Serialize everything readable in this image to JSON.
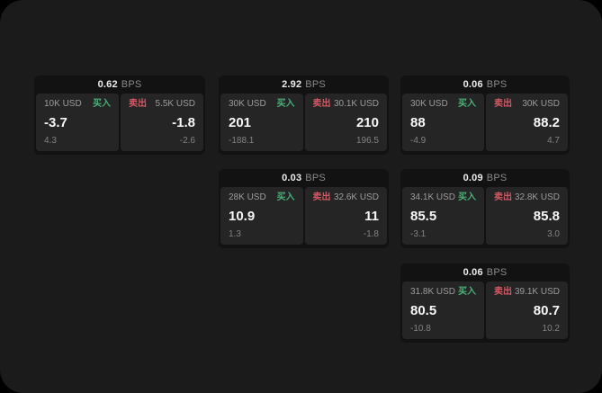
{
  "labels": {
    "bps_unit": "BPS",
    "buy": "买入",
    "sell": "卖出"
  },
  "colors": {
    "buy": "#4caf78",
    "sell": "#d15864",
    "screen_bg": "#1b1b1b",
    "card_bg": "#121212",
    "panel_bg": "#252525"
  },
  "cards": [
    {
      "bps": "0.62",
      "col": 1,
      "row": 1,
      "buy": {
        "amount": "10K USD",
        "value": "-3.7",
        "sub": "4.3"
      },
      "sell": {
        "amount": "5.5K USD",
        "value": "-1.8",
        "sub": "-2.6"
      }
    },
    {
      "bps": "2.92",
      "col": 2,
      "row": 1,
      "buy": {
        "amount": "30K USD",
        "value": "201",
        "sub": "-188.1"
      },
      "sell": {
        "amount": "30.1K USD",
        "value": "210",
        "sub": "196.5"
      }
    },
    {
      "bps": "0.06",
      "col": 3,
      "row": 1,
      "buy": {
        "amount": "30K USD",
        "value": "88",
        "sub": "-4.9"
      },
      "sell": {
        "amount": "30K USD",
        "value": "88.2",
        "sub": "4.7"
      }
    },
    {
      "bps": "0.03",
      "col": 2,
      "row": 2,
      "buy": {
        "amount": "28K USD",
        "value": "10.9",
        "sub": "1.3"
      },
      "sell": {
        "amount": "32.6K USD",
        "value": "11",
        "sub": "-1.8"
      }
    },
    {
      "bps": "0.09",
      "col": 3,
      "row": 2,
      "buy": {
        "amount": "34.1K USD",
        "value": "85.5",
        "sub": "-3.1"
      },
      "sell": {
        "amount": "32.8K USD",
        "value": "85.8",
        "sub": "3.0"
      }
    },
    {
      "bps": "0.06",
      "col": 3,
      "row": 3,
      "buy": {
        "amount": "31.8K USD",
        "value": "80.5",
        "sub": "-10.8"
      },
      "sell": {
        "amount": "39.1K USD",
        "value": "80.7",
        "sub": "10.2"
      }
    }
  ]
}
